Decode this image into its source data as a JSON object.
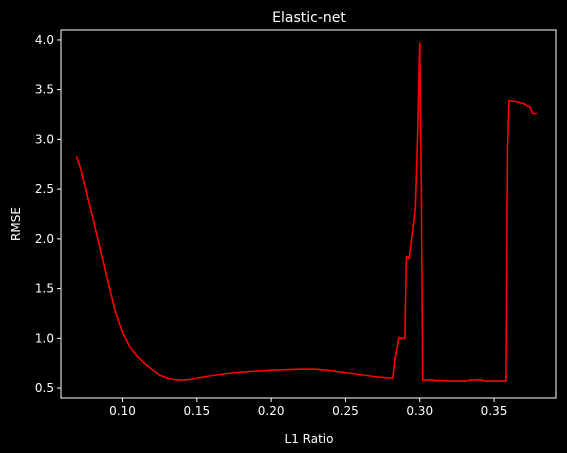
{
  "chart_data": {
    "type": "line",
    "title": "Elastic-net",
    "xlabel": "L1 Ratio",
    "ylabel": "RMSE",
    "xlim": [
      0.0586,
      0.3917
    ],
    "ylim": [
      0.4,
      4.1
    ],
    "grid": false,
    "background": "#000000",
    "foreground": "#ffffff",
    "line_color": "#ff0000",
    "xticks": [
      0.1,
      0.15,
      0.2,
      0.25,
      0.3,
      0.35
    ],
    "xtick_labels": [
      "0.10",
      "0.15",
      "0.20",
      "0.25",
      "0.30",
      "0.35"
    ],
    "yticks": [
      0.5,
      1.0,
      1.5,
      2.0,
      2.5,
      3.0,
      3.5,
      4.0
    ],
    "ytick_labels": [
      "0.5",
      "1.0",
      "1.5",
      "2.0",
      "2.5",
      "3.0",
      "3.5",
      "4.0"
    ],
    "series": [
      {
        "x": [
          0.069,
          0.072,
          0.076,
          0.08,
          0.085,
          0.09,
          0.095,
          0.1,
          0.105,
          0.11,
          0.115,
          0.12,
          0.125,
          0.13,
          0.135,
          0.14,
          0.145,
          0.15,
          0.16,
          0.17,
          0.18,
          0.19,
          0.2,
          0.21,
          0.22,
          0.23,
          0.24,
          0.25,
          0.26,
          0.27,
          0.28,
          0.282,
          0.283,
          0.286,
          0.287,
          0.29,
          0.291,
          0.292,
          0.293,
          0.295,
          0.297,
          0.2985,
          0.3,
          0.301,
          0.302,
          0.305,
          0.307,
          0.31,
          0.315,
          0.32,
          0.33,
          0.335,
          0.34,
          0.342,
          0.345,
          0.35,
          0.355,
          0.358,
          0.359,
          0.36,
          0.365,
          0.37,
          0.372,
          0.374,
          0.376,
          0.379
        ],
        "y": [
          2.83,
          2.7,
          2.45,
          2.21,
          1.9,
          1.58,
          1.28,
          1.06,
          0.91,
          0.82,
          0.745,
          0.685,
          0.63,
          0.6,
          0.585,
          0.58,
          0.585,
          0.6,
          0.625,
          0.645,
          0.66,
          0.67,
          0.68,
          0.685,
          0.69,
          0.69,
          0.675,
          0.655,
          0.635,
          0.615,
          0.6,
          0.6,
          0.76,
          1.01,
          1.0,
          1.0,
          1.82,
          1.82,
          1.8,
          2.05,
          2.3,
          3.0,
          3.97,
          2.6,
          0.58,
          0.58,
          0.585,
          0.575,
          0.575,
          0.57,
          0.57,
          0.58,
          0.585,
          0.575,
          0.57,
          0.57,
          0.57,
          0.57,
          2.9,
          3.39,
          3.38,
          3.36,
          3.34,
          3.33,
          3.26,
          3.26
        ]
      }
    ]
  }
}
